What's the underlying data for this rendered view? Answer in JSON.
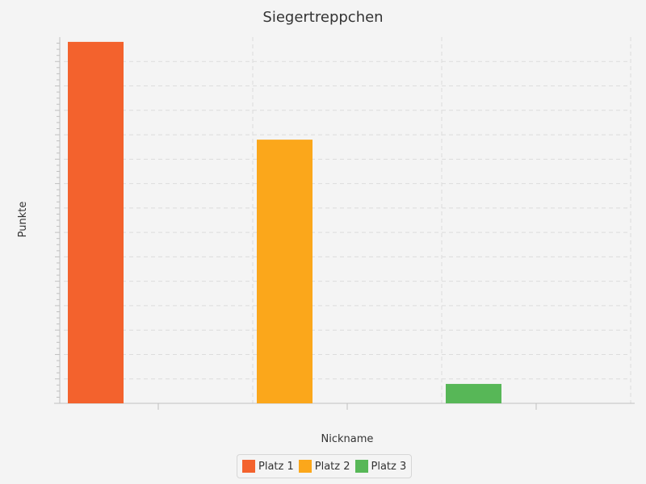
{
  "chart_data": {
    "type": "bar",
    "title": "Siegertreppchen",
    "xlabel": "Nickname",
    "ylabel": "Punkte",
    "categories": [
      "",
      "",
      ""
    ],
    "series": [
      {
        "name": "Platz 1",
        "color": "#f3622d",
        "values": [
          98.7,
          null,
          null
        ]
      },
      {
        "name": "Platz 2",
        "color": "#fba71b",
        "values": [
          null,
          72.0,
          null
        ]
      },
      {
        "name": "Platz 3",
        "color": "#57b757",
        "values": [
          null,
          null,
          5.3
        ]
      }
    ],
    "ylim": [
      0,
      100
    ],
    "grid": true,
    "legend_position": "bottom"
  }
}
